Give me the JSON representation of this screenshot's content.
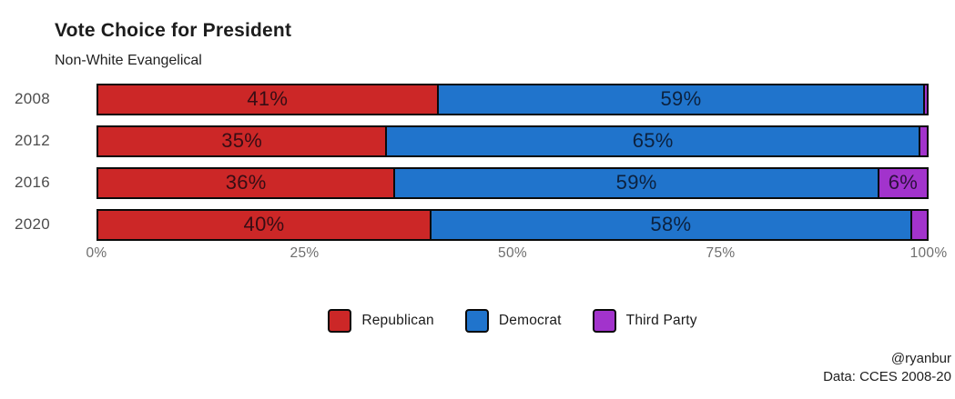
{
  "title": "Vote Choice for President",
  "subtitle": "Non-White Evangelical",
  "credit": {
    "line1": "@ryanbur",
    "line2": "Data: CCES 2008-20"
  },
  "colors": {
    "republican": "#cc2727",
    "democrat": "#2074cc",
    "third_party": "#a233cc",
    "outline": "#0a0a0a",
    "background": "#ffffff"
  },
  "chart_data": {
    "type": "bar",
    "orientation": "horizontal",
    "stacked": true,
    "title": "Vote Choice for President",
    "subtitle": "Non-White Evangelical",
    "categories": [
      "2008",
      "2012",
      "2016",
      "2020"
    ],
    "series": [
      {
        "name": "Republican",
        "color": "#cc2727",
        "values": [
          41,
          35,
          36,
          40
        ]
      },
      {
        "name": "Democrat",
        "color": "#2074cc",
        "values": [
          59,
          65,
          59,
          58
        ]
      },
      {
        "name": "Third Party",
        "color": "#a233cc",
        "values": [
          0.4,
          1,
          6,
          2
        ]
      }
    ],
    "bar_labels": [
      [
        "41%",
        "59%",
        ""
      ],
      [
        "35%",
        "65%",
        ""
      ],
      [
        "36%",
        "59%",
        "6%"
      ],
      [
        "40%",
        "58%",
        ""
      ]
    ],
    "xlabel": "",
    "ylabel": "",
    "xlim": [
      0,
      100
    ],
    "x_ticks": [
      "0%",
      "25%",
      "50%",
      "75%",
      "100%"
    ],
    "x_tick_positions": [
      0,
      25,
      50,
      75,
      100
    ],
    "grid": false,
    "legend_position": "bottom-center"
  }
}
